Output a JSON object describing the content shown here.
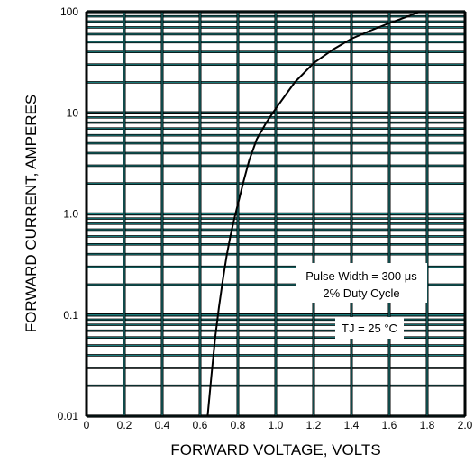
{
  "chart_data": {
    "type": "line",
    "title": "",
    "xlabel": "FORWARD VOLTAGE, VOLTS",
    "ylabel": "FORWARD CURRENT, AMPERES",
    "xlim": [
      0,
      2.0
    ],
    "ylim": [
      0.01,
      100
    ],
    "yscale": "log",
    "grid": true,
    "grid_color": "#1a7a7a",
    "line_color": "#000000",
    "x_ticks": [
      {
        "value": 0,
        "label": "0"
      },
      {
        "value": 0.2,
        "label": "0.2"
      },
      {
        "value": 0.4,
        "label": "0.4"
      },
      {
        "value": 0.6,
        "label": "0.6"
      },
      {
        "value": 0.8,
        "label": "0.8"
      },
      {
        "value": 1.0,
        "label": "1.0"
      },
      {
        "value": 1.2,
        "label": "1.2"
      },
      {
        "value": 1.4,
        "label": "1.4"
      },
      {
        "value": 1.6,
        "label": "1.6"
      },
      {
        "value": 1.8,
        "label": "1.8"
      },
      {
        "value": 2.0,
        "label": "2.0"
      }
    ],
    "y_ticks": [
      {
        "value": 0.01,
        "label": "0.01"
      },
      {
        "value": 0.1,
        "label": "0.1"
      },
      {
        "value": 1.0,
        "label": "1.0"
      },
      {
        "value": 10,
        "label": "10"
      },
      {
        "value": 100,
        "label": "100"
      }
    ],
    "series": [
      {
        "x": [
          0.64,
          0.66,
          0.68,
          0.7,
          0.72,
          0.74,
          0.76,
          0.78,
          0.8,
          0.83,
          0.86,
          0.9,
          0.95,
          1.0,
          1.1,
          1.2,
          1.3,
          1.4,
          1.5,
          1.6,
          1.7,
          1.76
        ],
        "y": [
          0.01,
          0.025,
          0.06,
          0.12,
          0.22,
          0.38,
          0.6,
          0.88,
          1.25,
          2.1,
          3.4,
          5.5,
          8.0,
          11.0,
          20.0,
          31.0,
          42.0,
          54.0,
          65.0,
          77.0,
          90.0,
          100.0
        ]
      }
    ],
    "annotations": {
      "pulse_width": "Pulse Width = 300 μs",
      "duty_cycle": "2% Duty Cycle",
      "temperature": "TJ = 25 °C"
    }
  }
}
